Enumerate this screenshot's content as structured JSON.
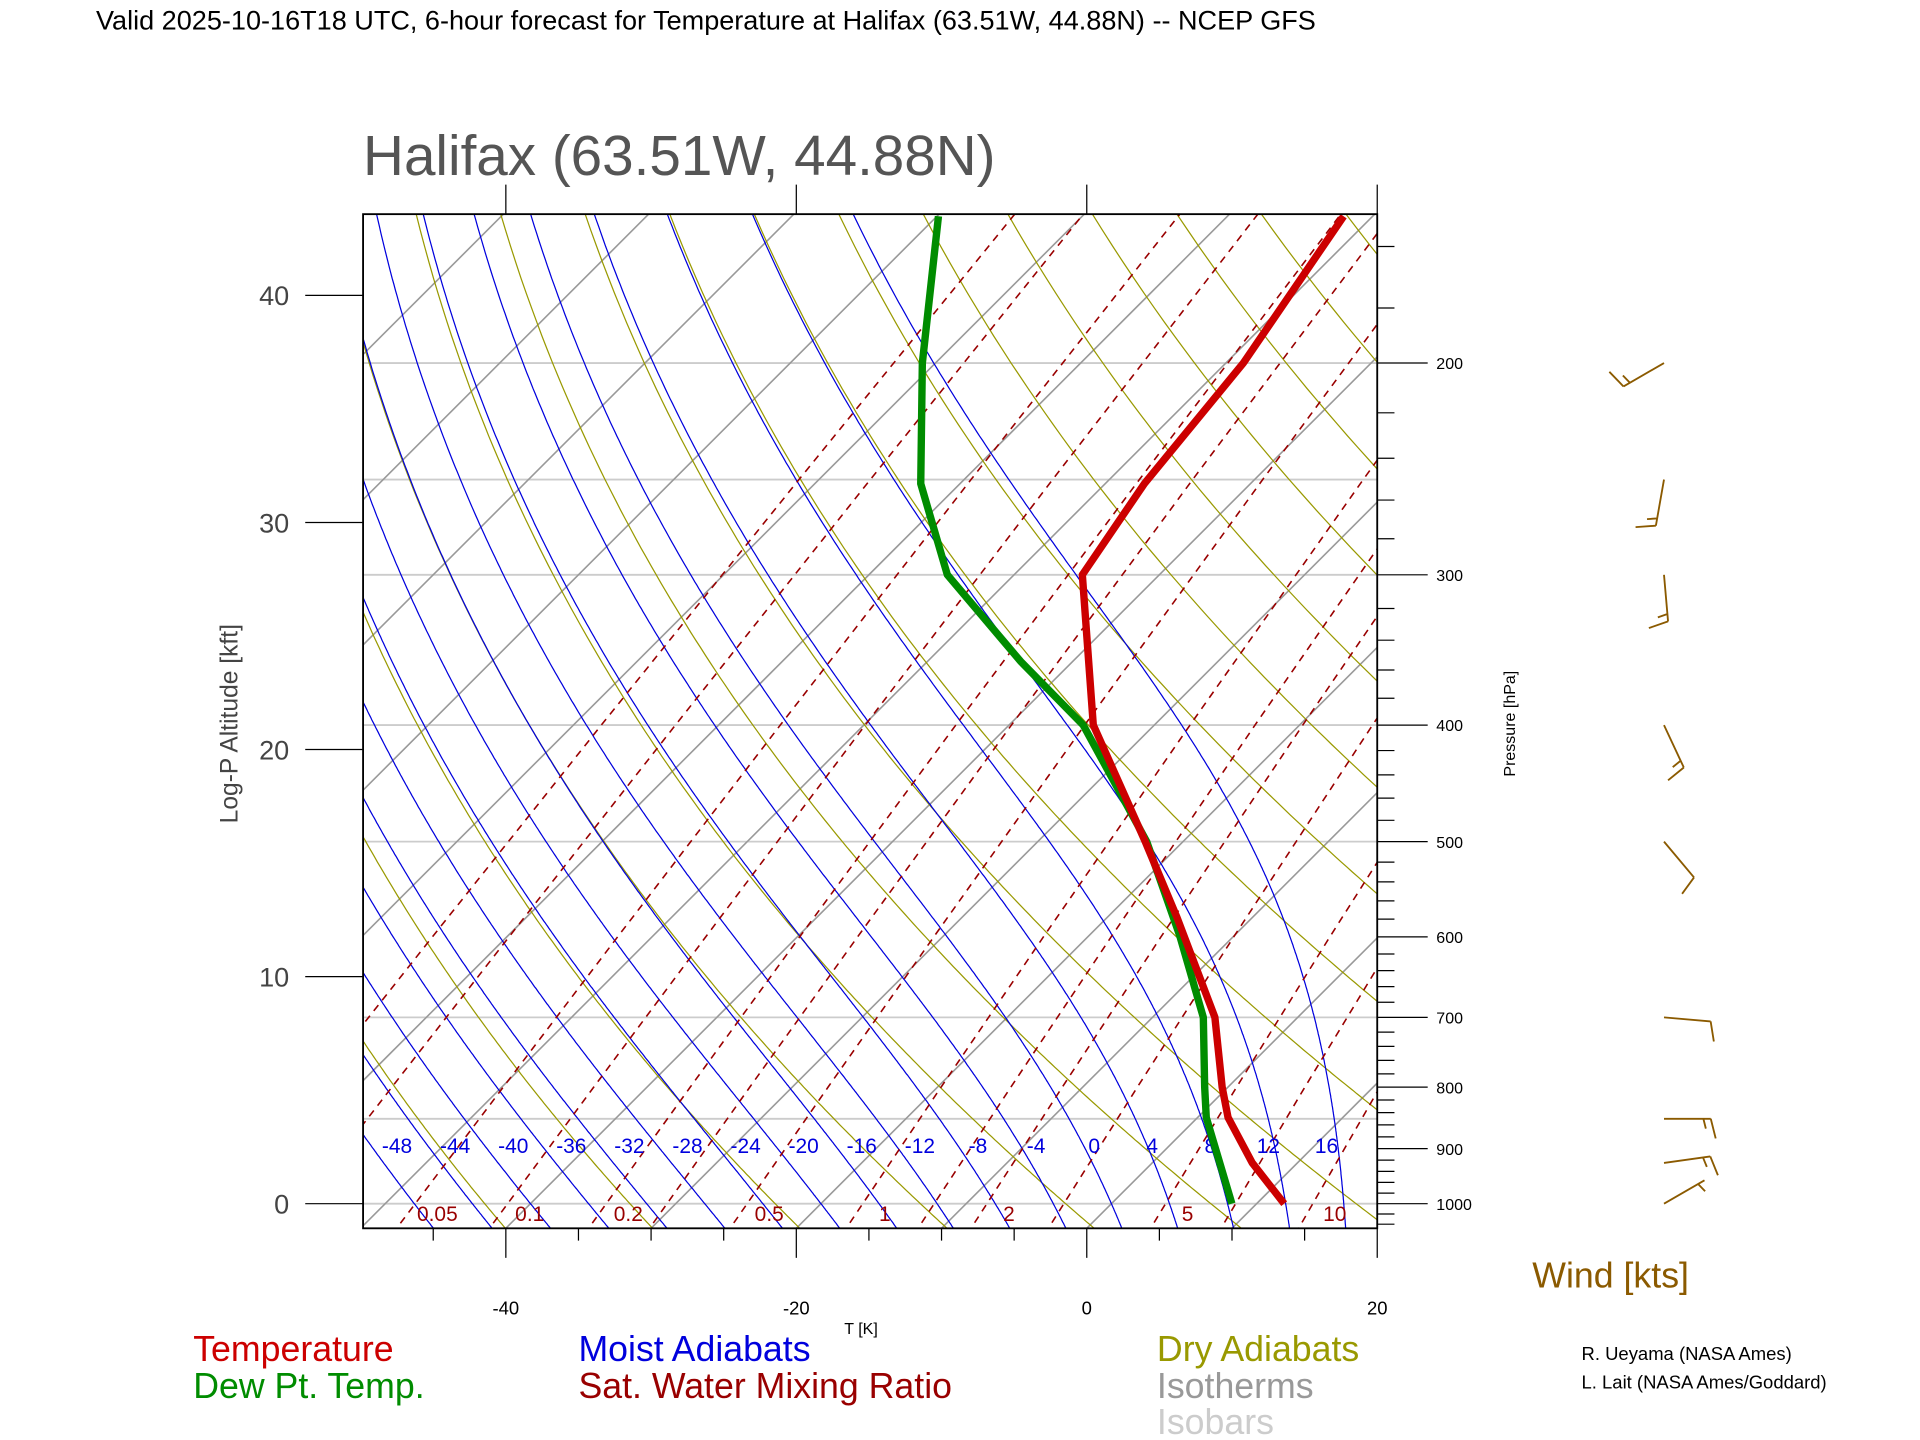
{
  "header": {
    "title": "Valid 2025-10-16T18 UTC, 6-hour forecast for Temperature at Halifax (63.51W, 44.88N) -- NCEP GFS",
    "station": "Halifax (63.51W, 44.88N)"
  },
  "legend": {
    "temperature": "Temperature",
    "dewpoint": "Dew Pt. Temp.",
    "moist": "Moist Adiabats",
    "mixing": "Sat. Water Mixing Ratio",
    "dry": "Dry Adiabats",
    "isotherms": "Isotherms",
    "isobars": "Isobars",
    "wind": "Wind [kts]"
  },
  "credits": [
    "R. Ueyama (NASA Ames)",
    "L. Lait (NASA Ames/Goddard)"
  ],
  "colors": {
    "temperature": "#cc0000",
    "dewpoint": "#008c00",
    "moist": "#0000dd",
    "mixing": "#990000",
    "dry": "#999900",
    "isotherms": "#999999",
    "isobars": "#cccccc",
    "wind": "#8b5a00"
  },
  "chart_data": {
    "type": "line",
    "title": "Halifax (63.51W, 44.88N)",
    "xlabel": "T [K]",
    "ylabel_left": "Log-P Altitude [kft]",
    "ylabel_right": "Pressure [hPa]",
    "x_ticks": [
      "-40",
      "-20",
      "0",
      "20"
    ],
    "x_tick_values": [
      -40,
      -20,
      0,
      20
    ],
    "xlim": [
      -50,
      20
    ],
    "pressure_range": [
      1048,
      150
    ],
    "left_ticks": [
      "0",
      "10",
      "20",
      "30",
      "40"
    ],
    "left_tick_values": [
      0,
      10,
      20,
      30,
      40
    ],
    "right_ticks": [
      "200",
      "300",
      "400",
      "500",
      "600",
      "700",
      "800",
      "900",
      "1000"
    ],
    "right_tick_values": [
      200,
      300,
      400,
      500,
      600,
      700,
      800,
      900,
      1000
    ],
    "temperature": {
      "pressure": [
        1000,
        925,
        848,
        800,
        700,
        578,
        500,
        400,
        300,
        252,
        200,
        151
      ],
      "values": [
        11.9,
        6.9,
        2.1,
        -0.4,
        -5.7,
        -15.2,
        -22.6,
        -34.2,
        -45.3,
        -47.3,
        -48.8,
        -52.0
      ]
    },
    "dewpoint": {
      "pressure": [
        1000,
        848,
        800,
        700,
        598,
        500,
        400,
        354,
        300,
        252,
        200,
        151
      ],
      "values": [
        8.3,
        0.6,
        -1.6,
        -6.5,
        -13.8,
        -22.5,
        -34.9,
        -43.6,
        -54.6,
        -62.7,
        -70.9,
        -79.9
      ]
    },
    "moist_adiabat_labels": [
      "-48",
      "-44",
      "-40",
      "-36",
      "-32",
      "-28",
      "-24",
      "-20",
      "-16",
      "-12",
      "-8",
      "-4",
      "0",
      "4",
      "8",
      "12",
      "16"
    ],
    "moist_adiabat_values": [
      -48,
      -44,
      -40,
      -36,
      -32,
      -28,
      -24,
      -20,
      -16,
      -12,
      -8,
      -4,
      0,
      4,
      8,
      12,
      16
    ],
    "mixing_ratio_labels": [
      "0.05",
      "0.1",
      "0.2",
      "0.5",
      "1",
      "2",
      "5",
      "10"
    ],
    "mixing_ratio_values": [
      0.05,
      0.1,
      0.2,
      0.5,
      1,
      2,
      5,
      10
    ],
    "mixing_ratio_lines": [
      0.01,
      0.02,
      0.05,
      0.1,
      0.2,
      0.3,
      0.5,
      1,
      1.5,
      2,
      3,
      5,
      7,
      10,
      15,
      20
    ],
    "dry_adiabats_K": [
      200,
      210,
      220,
      230,
      240,
      250,
      260,
      270,
      280,
      290,
      300,
      310,
      320,
      330,
      340,
      350,
      360,
      370,
      380,
      390,
      400,
      410,
      420,
      430,
      440
    ],
    "isotherms_C": [
      -130,
      -120,
      -110,
      -100,
      -90,
      -80,
      -70,
      -60,
      -50,
      -40,
      -30,
      -20,
      -10,
      0,
      10,
      20
    ],
    "isobars_hPa": [
      1000,
      850,
      700,
      500,
      400,
      300,
      250,
      200
    ],
    "winds": [
      {
        "pressure": 200,
        "direction": 240,
        "speed_kt": 15
      },
      {
        "pressure": 250,
        "direction": 190,
        "speed_kt": 15
      },
      {
        "pressure": 300,
        "direction": 175,
        "speed_kt": 15
      },
      {
        "pressure": 400,
        "direction": 155,
        "speed_kt": 15
      },
      {
        "pressure": 500,
        "direction": 140,
        "speed_kt": 10
      },
      {
        "pressure": 700,
        "direction": 95,
        "speed_kt": 10
      },
      {
        "pressure": 850,
        "direction": 90,
        "speed_kt": 15
      },
      {
        "pressure": 925,
        "direction": 82,
        "speed_kt": 15
      },
      {
        "pressure": 1000,
        "direction": 60,
        "speed_kt": 5
      }
    ]
  }
}
